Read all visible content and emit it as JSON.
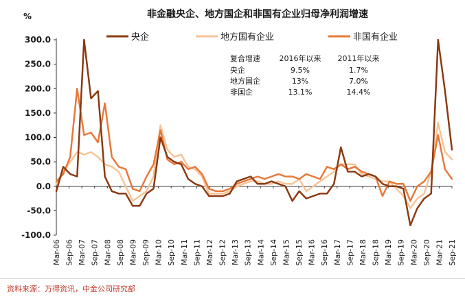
{
  "chart_data": {
    "type": "line",
    "title": "非金融央企、地方国企和非国有企业归母净利润增速",
    "ylabel": "%",
    "ylim": [
      -100,
      300
    ],
    "yticks": [
      "-100.0",
      "-50.0",
      "0.0",
      "50.0",
      "100.0",
      "150.0",
      "200.0",
      "250.0",
      "300.0"
    ],
    "x_tick_labels": [
      "Mar-06",
      "Sep-06",
      "Mar-07",
      "Sep-07",
      "Mar-08",
      "Sep-08",
      "Mar-09",
      "Sep-09",
      "Mar-10",
      "Sep-10",
      "Mar-11",
      "Sep-11",
      "Mar-12",
      "Sep-12",
      "Mar-13",
      "Sep-13",
      "Mar-14",
      "Sep-14",
      "Mar-15",
      "Sep-15",
      "Mar-16",
      "Sep-16",
      "Mar-17",
      "Sep-17",
      "Mar-18",
      "Sep-18",
      "Mar-19",
      "Sep-19",
      "Mar-20",
      "Sep-20",
      "Mar-21",
      "Sep-21"
    ],
    "legend_position": "top",
    "series": [
      {
        "name": "央企",
        "color": "#8b3a12",
        "values": [
          -10,
          40,
          25,
          20,
          300,
          180,
          195,
          20,
          -10,
          -15,
          -15,
          -40,
          -40,
          -15,
          -5,
          100,
          60,
          50,
          45,
          15,
          5,
          0,
          -20,
          -20,
          -20,
          -15,
          10,
          15,
          20,
          5,
          5,
          10,
          5,
          0,
          -30,
          -10,
          -25,
          -20,
          -15,
          -15,
          5,
          80,
          30,
          30,
          20,
          25,
          20,
          5,
          0,
          0,
          -5,
          -80,
          -45,
          -25,
          -15,
          300,
          195,
          75
        ]
      },
      {
        "name": "地方国有企业",
        "color": "#f6c497",
        "values": [
          5,
          30,
          50,
          70,
          65,
          70,
          60,
          45,
          40,
          30,
          0,
          -30,
          -20,
          -10,
          20,
          125,
          75,
          60,
          65,
          40,
          35,
          20,
          -15,
          -15,
          -15,
          -10,
          0,
          5,
          10,
          10,
          5,
          5,
          10,
          5,
          5,
          15,
          -10,
          0,
          10,
          20,
          30,
          45,
          45,
          45,
          25,
          20,
          15,
          10,
          10,
          -5,
          -20,
          -45,
          -25,
          -15,
          30,
          130,
          70,
          55
        ]
      },
      {
        "name": "非国有企业",
        "color": "#e8793a",
        "values": [
          10,
          25,
          60,
          200,
          105,
          110,
          90,
          170,
          60,
          40,
          35,
          -5,
          -10,
          20,
          45,
          115,
          55,
          45,
          50,
          35,
          40,
          25,
          -5,
          -10,
          -10,
          -5,
          5,
          10,
          15,
          20,
          15,
          20,
          25,
          20,
          20,
          15,
          25,
          20,
          15,
          40,
          35,
          45,
          35,
          40,
          30,
          25,
          20,
          -20,
          10,
          5,
          5,
          -30,
          0,
          10,
          30,
          105,
          35,
          15
        ]
      }
    ],
    "annotation_table": {
      "header": [
        "复合增速",
        "2016年以来",
        "2011年以来"
      ],
      "rows": [
        [
          "央企",
          "9.5%",
          "1.7%"
        ],
        [
          "地方国企",
          "13%",
          "7.0%"
        ],
        [
          "非国企",
          "13.1%",
          "14.4%"
        ]
      ]
    }
  },
  "source": "资料来源：万得资讯，中金公司研究部"
}
